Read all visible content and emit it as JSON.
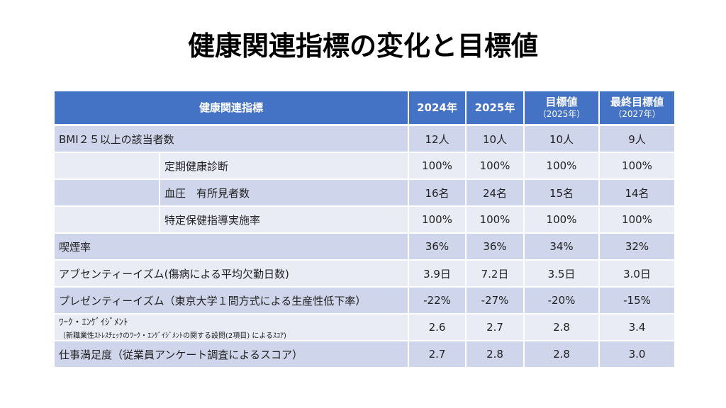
{
  "title": "健康関連指標の変化と目標値",
  "header": {
    "indicator": "健康関連指標",
    "y2024": "2024年",
    "y2025": "2025年",
    "target": "目標値",
    "target_sub": "（2025年）",
    "final": "最終目標値",
    "final_sub": "（2027年）"
  },
  "rows": [
    {
      "label": "BMI２５以上の該当者数",
      "indent": false,
      "v": [
        "12人",
        "10人",
        "10人",
        "9人"
      ]
    },
    {
      "label": "定期健康診断",
      "indent": true,
      "v": [
        "100%",
        "100%",
        "100%",
        "100%"
      ]
    },
    {
      "label": "血圧　有所見者数",
      "indent": true,
      "v": [
        "16名",
        "24名",
        "15名",
        "14名"
      ]
    },
    {
      "label": "特定保健指導実施率",
      "indent": true,
      "v": [
        "100%",
        "100%",
        "100%",
        "100%"
      ]
    },
    {
      "label": "喫煙率",
      "indent": false,
      "v": [
        "36%",
        "36%",
        "34%",
        "32%"
      ]
    },
    {
      "label": "アブセンティーイズム(傷病による平均欠勤日数)",
      "indent": false,
      "v": [
        "3.9日",
        "7.2日",
        "3.5日",
        "3.0日"
      ]
    },
    {
      "label": "プレゼンティーイズム（東京大学１問方式による生産性低下率）",
      "indent": false,
      "v": [
        "-22%",
        "-27%",
        "-20%",
        "-15%"
      ]
    },
    {
      "label": "ﾜｰｸ・ｴﾝｹﾞｲｼﾞﾒﾝﾄ",
      "sub": "（新職業性ｽﾄﾚｽﾁｪｯｸのﾜｰｸ・ｴﾝｹﾞｲｼﾞﾒﾝﾄの関する設問(2項目) によるｽｺｱ)",
      "indent": false,
      "v": [
        "2.6",
        "2.7",
        "2.8",
        "3.4"
      ]
    },
    {
      "label": "仕事満足度（従業員アンケート調査によるスコア）",
      "indent": false,
      "v": [
        "2.7",
        "2.8",
        "2.8",
        "3.0"
      ]
    }
  ]
}
